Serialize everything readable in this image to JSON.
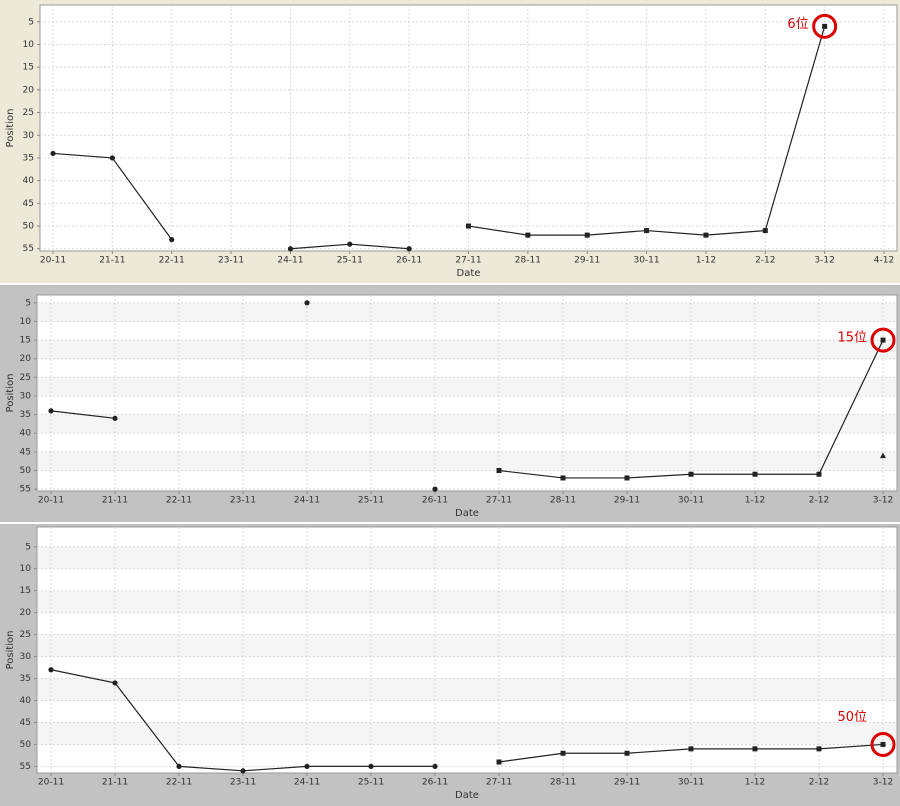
{
  "chart_data": [
    {
      "type": "line",
      "y_label": "Position",
      "x_label": "Date",
      "inverted": true,
      "grid": true,
      "categories": [
        "20-11",
        "21-11",
        "22-11",
        "23-11",
        "24-11",
        "25-11",
        "26-11",
        "27-11",
        "28-11",
        "29-11",
        "30-11",
        "1-12",
        "2-12",
        "3-12",
        "4-12"
      ],
      "series": [
        {
          "color": "#222222",
          "marker": "circle",
          "values": [
            34,
            35,
            53,
            null,
            55,
            54,
            55,
            null,
            null,
            null,
            null,
            null,
            null,
            null,
            null
          ]
        },
        {
          "color": "#222222",
          "marker": "square",
          "values": [
            null,
            null,
            null,
            null,
            null,
            null,
            null,
            50,
            52,
            52,
            51,
            52,
            51,
            6,
            null
          ]
        }
      ],
      "annotation": "6位",
      "annotation_color": "#dd0000",
      "ylim": [
        1.3,
        55.5
      ],
      "yticks": [
        5,
        10,
        15,
        20,
        25,
        30,
        35,
        40,
        45,
        50,
        55
      ]
    },
    {
      "type": "line",
      "y_label": "Position",
      "x_label": "Date",
      "inverted": true,
      "grid": true,
      "categories": [
        "20-11",
        "21-11",
        "22-11",
        "23-11",
        "24-11",
        "25-11",
        "26-11",
        "27-11",
        "28-11",
        "29-11",
        "30-11",
        "1-12",
        "2-12",
        "3-12"
      ],
      "series": [
        {
          "color": "#222222",
          "marker": "circle",
          "values": [
            34,
            36,
            null,
            null,
            5,
            null,
            55,
            null,
            null,
            null,
            null,
            null,
            null,
            null
          ]
        },
        {
          "color": "#222222",
          "marker": "square",
          "values": [
            null,
            null,
            null,
            null,
            null,
            null,
            null,
            50,
            52,
            52,
            51,
            51,
            51,
            15
          ]
        },
        {
          "color": "#222222",
          "marker": "triangle",
          "values": [
            null,
            null,
            null,
            null,
            null,
            null,
            null,
            null,
            null,
            null,
            null,
            null,
            null,
            46
          ]
        }
      ],
      "annotation": "15位",
      "annotation_color": "#dd0000",
      "ylim": [
        2.9,
        55.5
      ],
      "yticks": [
        5,
        10,
        15,
        20,
        25,
        30,
        35,
        40,
        45,
        50,
        55
      ]
    },
    {
      "type": "line",
      "y_label": "Position",
      "x_label": "Date",
      "inverted": true,
      "grid": true,
      "categories": [
        "20-11",
        "21-11",
        "22-11",
        "23-11",
        "24-11",
        "25-11",
        "26-11",
        "27-11",
        "28-11",
        "29-11",
        "30-11",
        "1-12",
        "2-12",
        "3-12"
      ],
      "series": [
        {
          "color": "#222222",
          "marker": "circle",
          "values": [
            33,
            36,
            55,
            56,
            55,
            55,
            55,
            null,
            null,
            null,
            null,
            null,
            null,
            null
          ]
        },
        {
          "color": "#222222",
          "marker": "square",
          "values": [
            null,
            null,
            null,
            null,
            null,
            null,
            null,
            54,
            52,
            52,
            51,
            51,
            51,
            50
          ]
        }
      ],
      "annotation": "50位",
      "annotation_color": "#dd0000",
      "ylim": [
        0.5,
        56.5
      ],
      "yticks": [
        5,
        10,
        15,
        20,
        25,
        30,
        35,
        40,
        45,
        50,
        55
      ]
    }
  ]
}
